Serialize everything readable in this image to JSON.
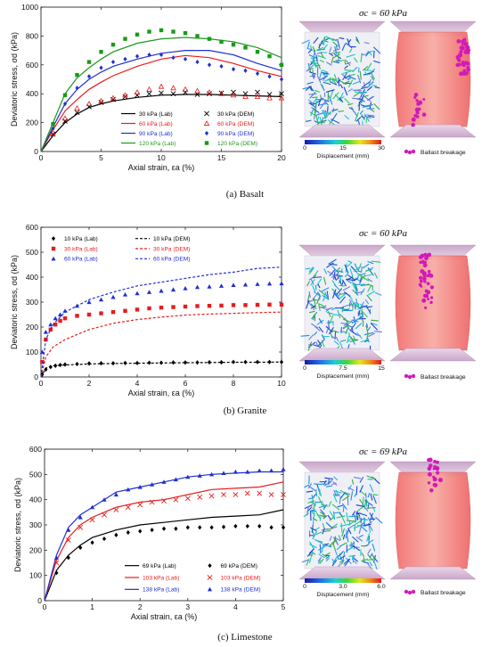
{
  "captions": [
    "(a) Basalt",
    "(b) Granite",
    "(c) Limestone"
  ],
  "chart_data": [
    {
      "type": "line",
      "xlabel": "Axial strain, εa (%)",
      "ylabel": "Deviatoric stress, σd (kPa)",
      "xlim": [
        0,
        20
      ],
      "ylim": [
        0,
        1000
      ],
      "xticks": [
        0,
        5,
        10,
        15,
        20
      ],
      "yticks": [
        0,
        200,
        400,
        600,
        800,
        1000
      ],
      "legend": "bottom-right",
      "side_panel": {
        "sigma_label": "σc = 60 kPa",
        "colorbar_label": "Displacement (mm)",
        "colorbar_ticks": [
          "0",
          "15",
          "30"
        ],
        "breakage_label": "Ballast breakage"
      },
      "series": [
        {
          "name": "30 kPa (Lab)",
          "color": "#000000",
          "kind": "line",
          "x": [
            0,
            1,
            2,
            3,
            4,
            5,
            6,
            8,
            10,
            12,
            14,
            16,
            18,
            20
          ],
          "y": [
            0,
            110,
            200,
            260,
            305,
            330,
            350,
            375,
            390,
            395,
            395,
            390,
            385,
            380
          ]
        },
        {
          "name": "60 kPa (Lab)",
          "color": "#e81c1c",
          "kind": "line",
          "x": [
            0,
            1,
            2,
            3,
            4,
            5,
            6,
            8,
            10,
            12,
            14,
            16,
            18,
            20
          ],
          "y": [
            0,
            150,
            280,
            360,
            430,
            480,
            525,
            590,
            640,
            665,
            650,
            610,
            560,
            520
          ]
        },
        {
          "name": "90 kPa (Lab)",
          "color": "#1f2fd6",
          "kind": "line",
          "x": [
            0,
            1,
            2,
            3,
            4,
            5,
            6,
            8,
            10,
            12,
            14,
            16,
            18,
            20
          ],
          "y": [
            0,
            170,
            330,
            430,
            500,
            550,
            590,
            640,
            680,
            700,
            700,
            670,
            610,
            560
          ]
        },
        {
          "name": "120 kPa (Lab)",
          "color": "#1a9a1a",
          "kind": "line",
          "x": [
            0,
            1,
            2,
            3,
            4,
            5,
            6,
            8,
            10,
            12,
            14,
            16,
            18,
            20
          ],
          "y": [
            0,
            200,
            400,
            510,
            580,
            640,
            690,
            750,
            780,
            790,
            780,
            760,
            720,
            650
          ]
        },
        {
          "name": "30 kPa (DEM)",
          "color": "#000000",
          "kind": "x",
          "x": [
            1,
            2,
            3,
            4,
            5,
            6,
            7,
            8,
            9,
            10,
            11,
            12,
            13,
            14,
            15,
            16,
            17,
            18,
            19,
            20
          ],
          "y": [
            120,
            210,
            270,
            310,
            340,
            360,
            380,
            390,
            400,
            405,
            400,
            410,
            395,
            400,
            405,
            410,
            400,
            410,
            395,
            400
          ]
        },
        {
          "name": "60 kPa (DEM)",
          "color": "#e81c1c",
          "kind": "triangle-open",
          "x": [
            1,
            2,
            3,
            4,
            5,
            6,
            7,
            8,
            9,
            10,
            11,
            12,
            13,
            14,
            15,
            16,
            17,
            18,
            19,
            20
          ],
          "y": [
            130,
            230,
            300,
            330,
            350,
            370,
            390,
            410,
            430,
            450,
            440,
            430,
            420,
            410,
            400,
            390,
            380,
            380,
            370,
            370
          ]
        },
        {
          "name": "90 kPa (DEM)",
          "color": "#1f2fd6",
          "kind": "diamond",
          "x": [
            1,
            2,
            3,
            4,
            5,
            6,
            7,
            8,
            9,
            10,
            11,
            12,
            13,
            14,
            15,
            16,
            17,
            18,
            19,
            20
          ],
          "y": [
            160,
            330,
            440,
            520,
            580,
            620,
            640,
            660,
            670,
            670,
            650,
            640,
            620,
            600,
            590,
            570,
            560,
            540,
            520,
            500
          ]
        },
        {
          "name": "120 kPa (DEM)",
          "color": "#1a9a1a",
          "kind": "square",
          "x": [
            1,
            2,
            3,
            4,
            5,
            6,
            7,
            8,
            9,
            10,
            11,
            12,
            13,
            14,
            15,
            16,
            17,
            18,
            19,
            20
          ],
          "y": [
            190,
            390,
            530,
            620,
            690,
            740,
            780,
            810,
            830,
            840,
            830,
            820,
            800,
            780,
            760,
            740,
            720,
            690,
            660,
            600
          ]
        }
      ]
    },
    {
      "type": "line",
      "xlabel": "Axial strain, εa (%)",
      "ylabel": "Deviatoric stress, σd (kPa)",
      "xlim": [
        0,
        10
      ],
      "ylim": [
        0,
        600
      ],
      "xticks": [
        0,
        2,
        4,
        6,
        8,
        10
      ],
      "yticks": [
        0,
        100,
        200,
        300,
        400,
        500,
        600
      ],
      "legend": "top-left",
      "side_panel": {
        "sigma_label": "σc = 60 kPa",
        "colorbar_label": "Displacement (mm)",
        "colorbar_ticks": [
          "0",
          "7.5",
          "15"
        ],
        "breakage_label": "Ballast breakage"
      },
      "series": [
        {
          "name": "10 kPa (Lab)",
          "color": "#000000",
          "kind": "diamond",
          "x": [
            0.05,
            0.2,
            0.4,
            0.6,
            0.8,
            1,
            1.5,
            2,
            2.5,
            3,
            3.5,
            4,
            4.5,
            5,
            5.5,
            6,
            6.5,
            7,
            7.5,
            8,
            8.5,
            9,
            9.5,
            10
          ],
          "y": [
            10,
            30,
            40,
            45,
            48,
            50,
            52,
            54,
            55,
            55,
            56,
            56,
            57,
            57,
            58,
            58,
            58,
            59,
            59,
            60,
            60,
            60,
            60,
            60
          ]
        },
        {
          "name": "10 kPa (DEM)",
          "color": "#000000",
          "kind": "dashed",
          "x": [
            0,
            0.2,
            0.5,
            1,
            2,
            3,
            4,
            5,
            6,
            7,
            8,
            9,
            10
          ],
          "y": [
            0,
            35,
            45,
            48,
            52,
            54,
            55,
            56,
            57,
            58,
            59,
            59,
            60
          ]
        },
        {
          "name": "30 kPa (Lab)",
          "color": "#e81c1c",
          "kind": "square",
          "x": [
            0.05,
            0.2,
            0.4,
            0.6,
            0.8,
            1,
            1.5,
            2,
            2.5,
            3,
            3.5,
            4,
            4.5,
            5,
            5.5,
            6,
            6.5,
            7,
            7.5,
            8,
            8.5,
            9,
            9.5,
            10
          ],
          "y": [
            60,
            150,
            190,
            210,
            225,
            235,
            245,
            250,
            255,
            260,
            265,
            270,
            275,
            278,
            280,
            282,
            284,
            285,
            286,
            288,
            288,
            289,
            290,
            290
          ]
        },
        {
          "name": "30 kPa (DEM)",
          "color": "#e81c1c",
          "kind": "dashed",
          "x": [
            0,
            0.2,
            0.5,
            1,
            2,
            3,
            4,
            5,
            6,
            7,
            8,
            9,
            10
          ],
          "y": [
            0,
            80,
            120,
            150,
            190,
            215,
            230,
            240,
            248,
            252,
            255,
            258,
            260
          ]
        },
        {
          "name": "60 kPa (Lab)",
          "color": "#1f2fd6",
          "kind": "triangle",
          "x": [
            0.05,
            0.2,
            0.4,
            0.6,
            0.8,
            1,
            1.5,
            2,
            2.5,
            3,
            3.5,
            4,
            4.5,
            5,
            5.5,
            6,
            6.5,
            7,
            7.5,
            8,
            8.5,
            9,
            9.5,
            10
          ],
          "y": [
            100,
            180,
            210,
            235,
            250,
            265,
            285,
            300,
            310,
            320,
            330,
            335,
            340,
            345,
            350,
            355,
            360,
            362,
            365,
            368,
            370,
            372,
            374,
            375
          ]
        },
        {
          "name": "60 kPa (DEM)",
          "color": "#1f2fd6",
          "kind": "dashed",
          "x": [
            0,
            0.2,
            0.5,
            1,
            2,
            3,
            4,
            5,
            6,
            7,
            8,
            9,
            10
          ],
          "y": [
            0,
            150,
            210,
            260,
            310,
            340,
            365,
            380,
            395,
            410,
            420,
            435,
            440
          ]
        }
      ]
    },
    {
      "type": "line",
      "xlabel": "Axial strain, εa (%)",
      "ylabel": "Deviatoric stress, σd (kPa)",
      "xlim": [
        0,
        5
      ],
      "ylim": [
        0,
        600
      ],
      "xticks": [
        0,
        1,
        2,
        3,
        4,
        5
      ],
      "yticks": [
        0,
        100,
        200,
        300,
        400,
        500,
        600
      ],
      "legend": "bottom-right",
      "side_panel": {
        "sigma_label": "σc = 69 kPa",
        "colorbar_label": "Displacement (mm)",
        "colorbar_ticks": [
          "0",
          "3.0",
          "6.0"
        ],
        "breakage_label": "Ballast breakage"
      },
      "series": [
        {
          "name": "69 kPa (Lab)",
          "color": "#000000",
          "kind": "line",
          "x": [
            0,
            0.25,
            0.5,
            0.75,
            1,
            1.5,
            2,
            2.5,
            3,
            3.5,
            4,
            4.5,
            5
          ],
          "y": [
            0,
            120,
            180,
            220,
            250,
            280,
            300,
            310,
            320,
            330,
            335,
            340,
            360
          ]
        },
        {
          "name": "103 kPa (Lab)",
          "color": "#e81c1c",
          "kind": "line",
          "x": [
            0,
            0.25,
            0.5,
            0.75,
            1,
            1.5,
            2,
            2.5,
            3,
            3.5,
            4,
            4.5,
            5
          ],
          "y": [
            0,
            160,
            250,
            300,
            330,
            370,
            390,
            400,
            420,
            440,
            445,
            450,
            470
          ]
        },
        {
          "name": "138 kPa (Lab)",
          "color": "#1f2fd6",
          "kind": "line",
          "x": [
            0,
            0.25,
            0.5,
            0.75,
            1,
            1.5,
            2,
            2.5,
            3,
            3.5,
            4,
            4.5,
            5
          ],
          "y": [
            0,
            180,
            290,
            340,
            370,
            430,
            450,
            470,
            490,
            500,
            505,
            510,
            510
          ]
        },
        {
          "name": "69 kPa (DEM)",
          "color": "#000000",
          "kind": "diamond",
          "x": [
            0.25,
            0.5,
            0.75,
            1,
            1.25,
            1.5,
            1.75,
            2,
            2.25,
            2.5,
            2.75,
            3,
            3.25,
            3.5,
            3.75,
            4,
            4.25,
            4.5,
            4.75,
            5
          ],
          "y": [
            110,
            170,
            210,
            230,
            245,
            260,
            270,
            275,
            280,
            285,
            285,
            290,
            290,
            290,
            292,
            295,
            295,
            295,
            290,
            290
          ]
        },
        {
          "name": "103 kPa (DEM)",
          "color": "#e81c1c",
          "kind": "x",
          "x": [
            0.25,
            0.5,
            0.75,
            1,
            1.25,
            1.5,
            1.75,
            2,
            2.25,
            2.5,
            2.75,
            3,
            3.25,
            3.5,
            3.75,
            4,
            4.25,
            4.5,
            4.75,
            5
          ],
          "y": [
            150,
            240,
            290,
            320,
            340,
            360,
            370,
            380,
            390,
            395,
            400,
            405,
            410,
            415,
            420,
            420,
            425,
            425,
            420,
            420
          ]
        },
        {
          "name": "138 kPa (DEM)",
          "color": "#1f2fd6",
          "kind": "triangle",
          "x": [
            0.25,
            0.5,
            0.75,
            1,
            1.25,
            1.5,
            1.75,
            2,
            2.25,
            2.5,
            2.75,
            3,
            3.25,
            3.5,
            3.75,
            4,
            4.25,
            4.5,
            4.75,
            5
          ],
          "y": [
            170,
            280,
            330,
            370,
            400,
            420,
            440,
            450,
            460,
            470,
            480,
            490,
            495,
            500,
            505,
            510,
            510,
            515,
            515,
            520
          ]
        }
      ]
    }
  ]
}
